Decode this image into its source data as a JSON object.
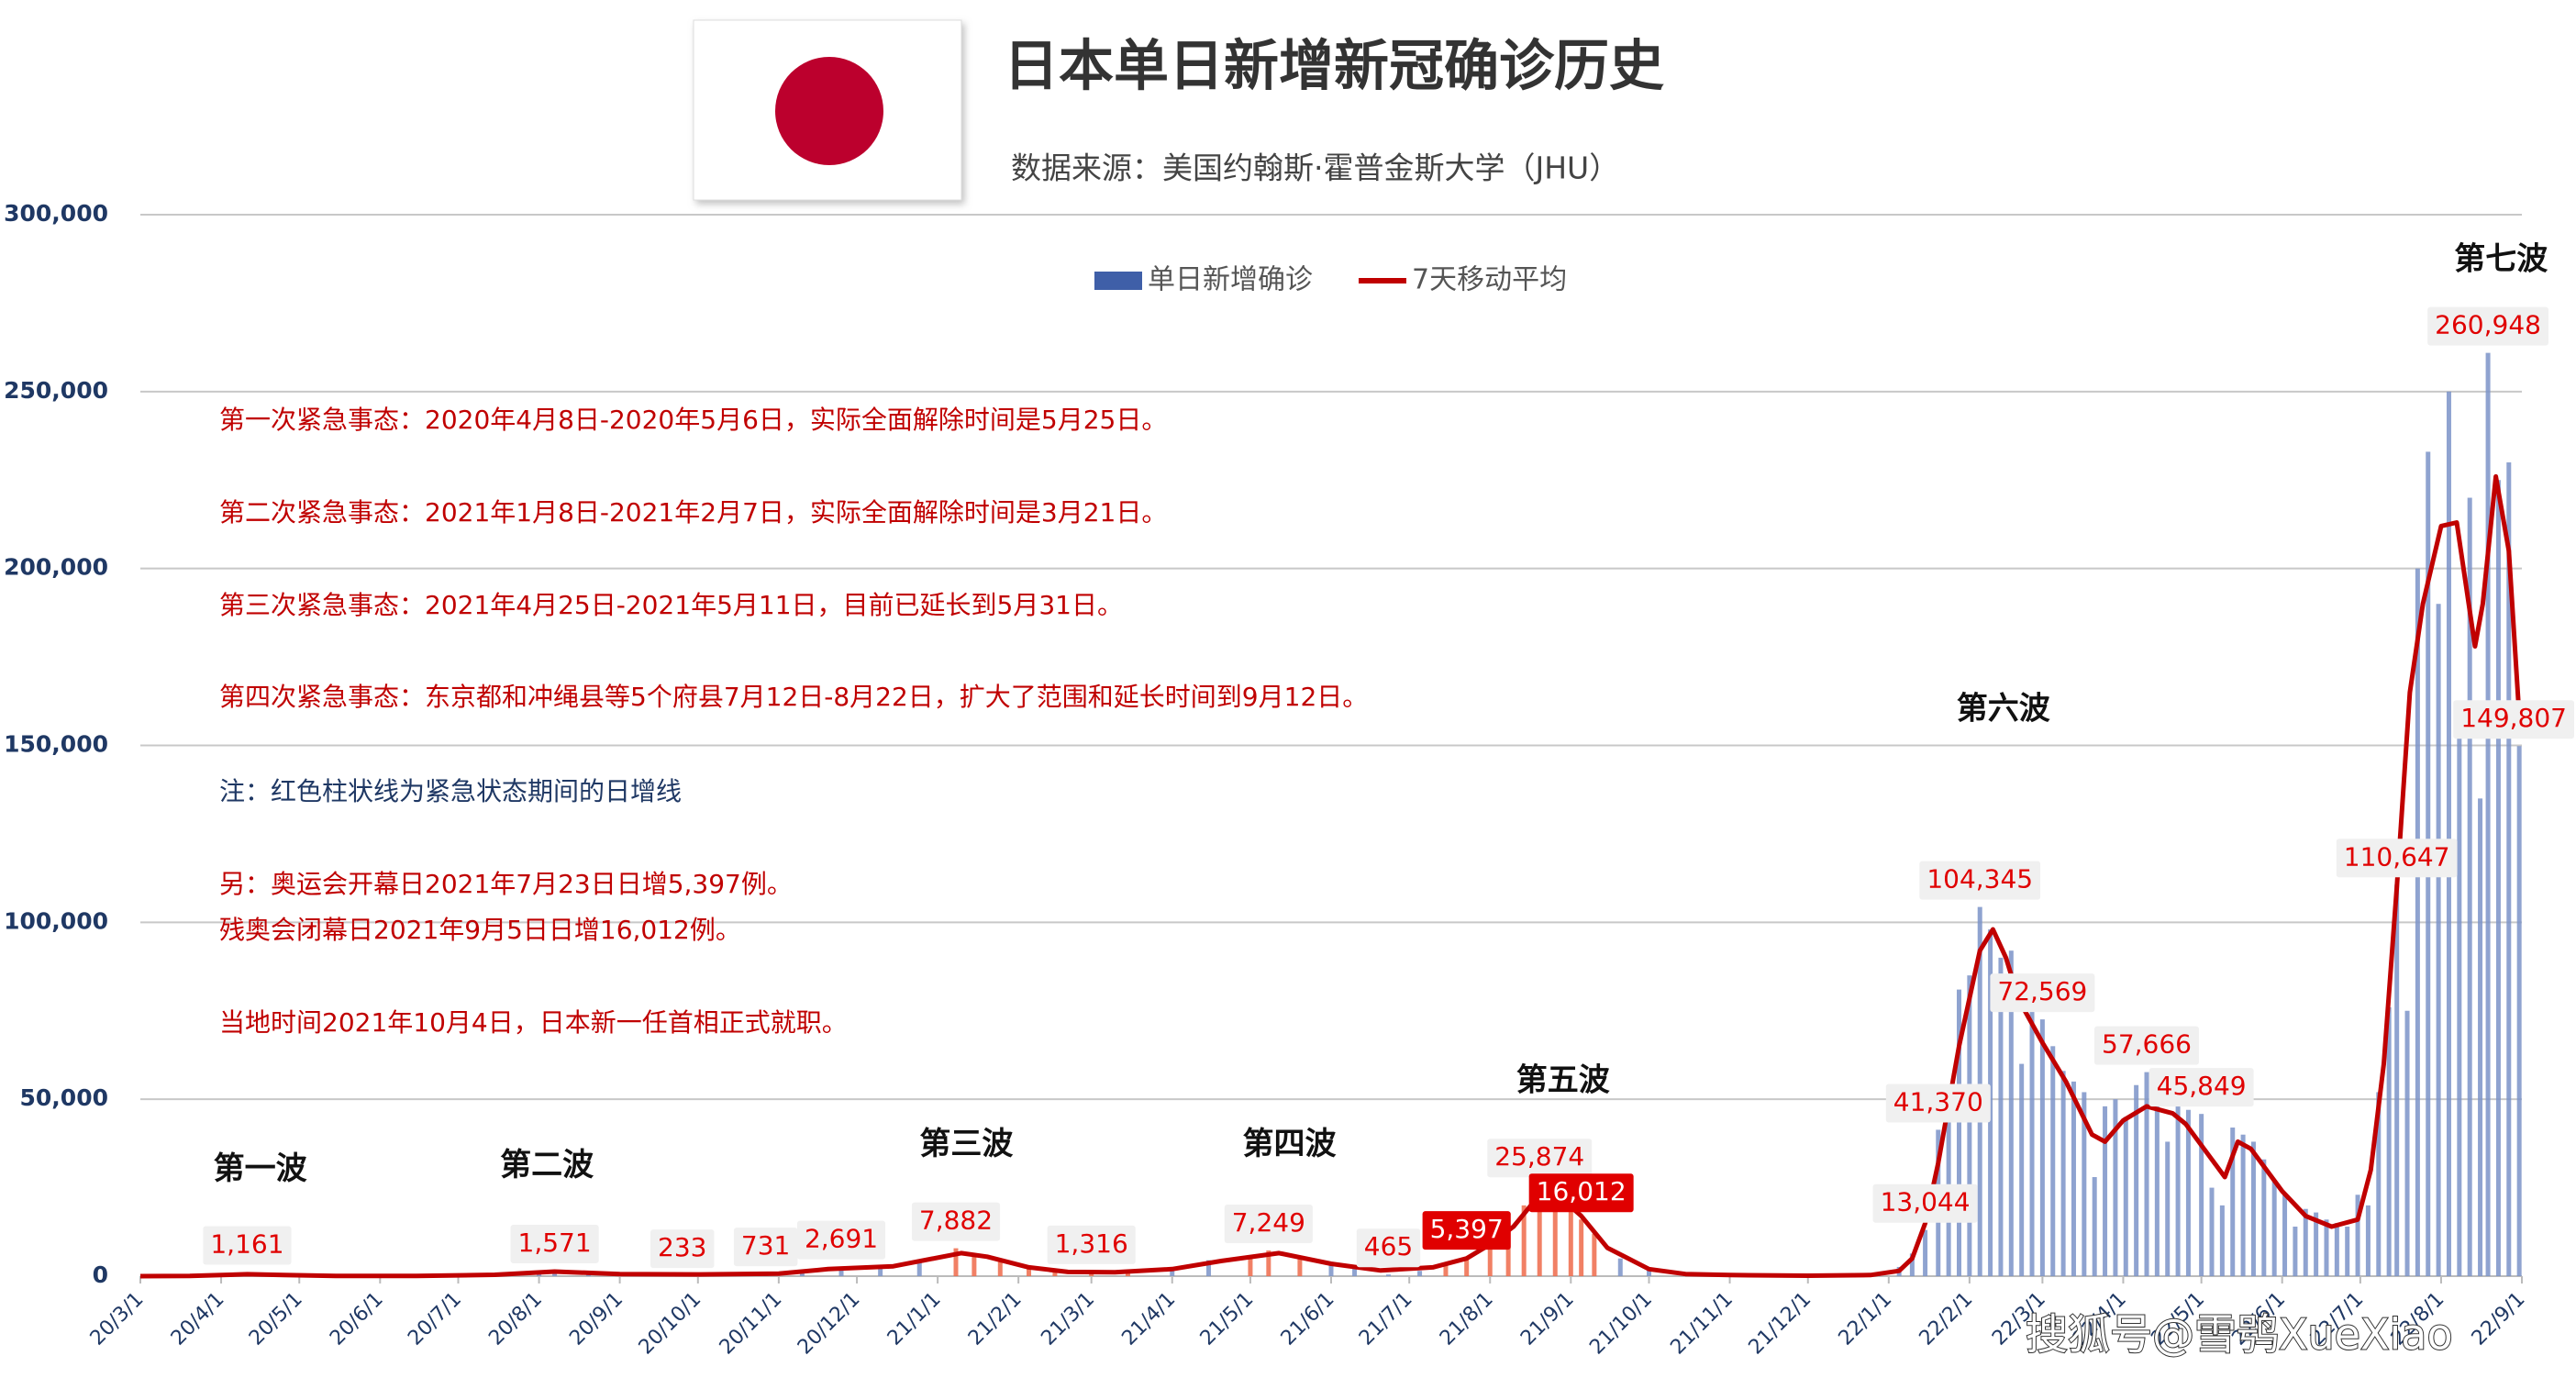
{
  "chart_data": {
    "type": "bar",
    "title": "日本单日新增新冠确诊历史",
    "subtitle": "数据来源：美国约翰斯·霍普金斯大学（JHU）",
    "watermark": "搜狐号@雪鸮XueXiao",
    "legend": "top",
    "grid": true,
    "ylim": [
      0,
      300000
    ],
    "yticks": [
      0,
      {
        "value": 50000,
        "label": "50,000"
      },
      {
        "value": 100000,
        "label": "100,000"
      },
      {
        "value": 150000,
        "label": "150,000"
      },
      {
        "value": 200000,
        "label": "200,000"
      },
      {
        "value": 250000,
        "label": "250,000"
      },
      {
        "value": 300000,
        "label": "300,000"
      }
    ],
    "xlim": [
      "20/3/1",
      "22/9/1"
    ],
    "xticks": [
      "20/3/1",
      "20/4/1",
      "20/5/1",
      "20/6/1",
      "20/7/1",
      "20/8/1",
      "20/9/1",
      "20/10/1",
      "20/11/1",
      "20/12/1",
      "21/1/1",
      "21/2/1",
      "21/3/1",
      "21/4/1",
      "21/5/1",
      "21/6/1",
      "21/7/1",
      "21/8/1",
      "21/9/1",
      "21/10/1",
      "21/11/1",
      "21/12/1",
      "22/1/1",
      "22/2/1",
      "22/3/1",
      "22/4/1",
      "22/5/1",
      "22/6/1",
      "22/7/1",
      "22/8/1",
      "22/9/1"
    ],
    "notes": [
      {
        "text": "第一次紧急事态：2020年4月8日-2020年5月6日，实际全面解除时间是5月25日。",
        "color": "#c00000"
      },
      {
        "text": "第二次紧急事态：2021年1月8日-2021年2月7日，实际全面解除时间是3月21日。",
        "color": "#c00000"
      },
      {
        "text": "第三次紧急事态：2021年4月25日-2021年5月11日，目前已延长到5月31日。",
        "color": "#c00000"
      },
      {
        "text": "第四次紧急事态：东京都和冲绳县等5个府县7月12日-8月22日，扩大了范围和延长时间到9月12日。",
        "color": "#c00000"
      },
      {
        "text": "注：红色柱状线为紧急状态期间的日增线",
        "color": "#1f3864"
      },
      {
        "text": "另：奥运会开幕日2021年7月23日日增5,397例。",
        "color": "#c00000"
      },
      {
        "text": "残奥会闭幕日2021年9月5日日增16,012例。",
        "color": "#c00000"
      },
      {
        "text": "当地时间2021年10月4日，日本新一任首相正式就职。",
        "color": "#c00000"
      }
    ],
    "series": [
      {
        "name": "单日新增确诊",
        "type": "bar",
        "color": "#3f5fa8",
        "x": [
          "20/3/15",
          "20/4/1",
          "20/4/11",
          "20/4/20",
          "20/5/1",
          "20/5/15",
          "20/6/1",
          "20/6/15",
          "20/7/1",
          "20/7/15",
          "20/8/1",
          "20/8/7",
          "20/8/20",
          "20/9/1",
          "20/9/15",
          "20/9/25",
          "20/10/10",
          "20/10/27",
          "20/11/10",
          "20/11/25",
          "20/12/10",
          "20/12/25",
          "21/1/8",
          "21/1/15",
          "21/1/25",
          "21/2/5",
          "21/2/15",
          "21/3/1",
          "21/3/15",
          "21/4/1",
          "21/4/15",
          "21/5/1",
          "21/5/8",
          "21/5/20",
          "21/6/1",
          "21/6/10",
          "21/6/23",
          "21/7/5",
          "21/7/15",
          "21/7/23",
          "21/8/1",
          "21/8/8",
          "21/8/14",
          "21/8/20",
          "21/8/26",
          "21/9/1",
          "21/9/5",
          "21/9/10",
          "21/9/20",
          "21/10/1",
          "21/10/15",
          "21/11/1",
          "21/11/15",
          "21/12/1",
          "21/12/15",
          "21/12/28",
          "22/1/5",
          "22/1/10",
          "22/1/15",
          "22/1/20",
          "22/1/24",
          "22/1/28",
          "22/2/1",
          "22/2/5",
          "22/2/9",
          "22/2/13",
          "22/2/17",
          "22/2/21",
          "22/2/25",
          "22/3/1",
          "22/3/5",
          "22/3/9",
          "22/3/13",
          "22/3/17",
          "22/3/21",
          "22/3/25",
          "22/3/29",
          "22/4/2",
          "22/4/6",
          "22/4/10",
          "22/4/14",
          "22/4/18",
          "22/4/22",
          "22/4/26",
          "22/5/1",
          "22/5/5",
          "22/5/9",
          "22/5/13",
          "22/5/17",
          "22/5/21",
          "22/5/25",
          "22/5/29",
          "22/6/2",
          "22/6/6",
          "22/6/10",
          "22/6/14",
          "22/6/18",
          "22/6/22",
          "22/6/26",
          "22/6/30",
          "22/7/4",
          "22/7/8",
          "22/7/12",
          "22/7/15",
          "22/7/19",
          "22/7/23",
          "22/7/27",
          "22/7/31",
          "22/8/4",
          "22/8/8",
          "22/8/12",
          "22/8/16",
          "22/8/19",
          "22/8/23",
          "22/8/27",
          "22/8/31"
        ],
        "values": [
          40,
          250,
          1161,
          400,
          180,
          50,
          40,
          70,
          130,
          450,
          1500,
          1571,
          1000,
          600,
          500,
          233,
          600,
          731,
          1300,
          2691,
          2800,
          3800,
          7882,
          6500,
          4000,
          2600,
          1300,
          1316,
          1100,
          2000,
          4500,
          5000,
          7249,
          5500,
          3000,
          2200,
          465,
          1500,
          3400,
          5397,
          10000,
          14000,
          20000,
          25874,
          24500,
          20000,
          16012,
          12000,
          5000,
          1600,
          600,
          300,
          200,
          120,
          180,
          400,
          2600,
          6400,
          13044,
          41370,
          45000,
          81000,
          85000,
          104345,
          98000,
          90000,
          92000,
          60000,
          75000,
          72569,
          65000,
          58000,
          55000,
          52000,
          28000,
          48000,
          50000,
          45000,
          54000,
          57666,
          56000,
          38000,
          52000,
          47000,
          45849,
          25000,
          20000,
          42000,
          40000,
          38000,
          33000,
          27000,
          23000,
          14000,
          19000,
          18000,
          16000,
          15000,
          14000,
          23000,
          20000,
          52000,
          76000,
          110647,
          75000,
          200000,
          233000,
          190000,
          250000,
          160000,
          220000,
          135000,
          260948,
          225000,
          230000,
          149807
        ],
        "colors": [
          "#7b93c8",
          "#7b93c8",
          "#ee6a4a",
          "#ee6a4a",
          "#ee6a4a",
          "#ee6a4a",
          "#7b93c8",
          "#7b93c8",
          "#7b93c8",
          "#7b93c8",
          "#7b93c8",
          "#7b93c8",
          "#7b93c8",
          "#7b93c8",
          "#7b93c8",
          "#7b93c8",
          "#7b93c8",
          "#7b93c8",
          "#7b93c8",
          "#7b93c8",
          "#7b93c8",
          "#7b93c8",
          "#ee6a4a",
          "#ee6a4a",
          "#ee6a4a",
          "#ee6a4a",
          "#ee6a4a",
          "#ee6a4a",
          "#ee6a4a",
          "#7b93c8",
          "#7b93c8",
          "#ee6a4a",
          "#ee6a4a",
          "#ee6a4a",
          "#7b93c8",
          "#7b93c8",
          "#7b93c8",
          "#7b93c8",
          "#ee6a4a",
          "#ee6a4a",
          "#ee6a4a",
          "#ee6a4a",
          "#ee6a4a",
          "#ee6a4a",
          "#ee6a4a",
          "#ee6a4a",
          "#ee6a4a",
          "#ee6a4a",
          "#7b93c8",
          "#7b93c8",
          "#7b93c8",
          "#7b93c8",
          "#7b93c8",
          "#7b93c8",
          "#7b93c8",
          "#7b93c8",
          "#7b93c8",
          "#7b93c8",
          "#7b93c8",
          "#7b93c8",
          "#7b93c8",
          "#7b93c8",
          "#7b93c8",
          "#7b93c8",
          "#7b93c8",
          "#7b93c8",
          "#7b93c8",
          "#7b93c8",
          "#7b93c8",
          "#7b93c8",
          "#7b93c8",
          "#7b93c8",
          "#7b93c8",
          "#7b93c8",
          "#7b93c8",
          "#7b93c8",
          "#7b93c8",
          "#7b93c8",
          "#7b93c8",
          "#7b93c8",
          "#7b93c8",
          "#7b93c8",
          "#7b93c8",
          "#7b93c8",
          "#7b93c8",
          "#7b93c8",
          "#7b93c8",
          "#7b93c8",
          "#7b93c8",
          "#7b93c8",
          "#7b93c8",
          "#7b93c8",
          "#7b93c8",
          "#7b93c8",
          "#7b93c8",
          "#7b93c8",
          "#7b93c8",
          "#7b93c8",
          "#7b93c8",
          "#7b93c8",
          "#7b93c8",
          "#7b93c8",
          "#7b93c8",
          "#7b93c8",
          "#7b93c8",
          "#7b93c8",
          "#7b93c8",
          "#7b93c8",
          "#7b93c8",
          "#7b93c8",
          "#7b93c8",
          "#7b93c8",
          "#7b93c8",
          "#7b93c8",
          "#7b93c8",
          "#7b93c8"
        ]
      },
      {
        "name": "7天移动平均",
        "type": "line",
        "color": "#c00000",
        "x": [
          "20/3/1",
          "20/3/20",
          "20/4/11",
          "20/4/25",
          "20/5/15",
          "20/6/15",
          "20/7/15",
          "20/8/7",
          "20/9/1",
          "20/10/1",
          "20/11/1",
          "20/11/20",
          "20/12/15",
          "21/1/10",
          "21/1/20",
          "21/2/5",
          "21/2/20",
          "21/3/10",
          "21/4/1",
          "21/4/20",
          "21/5/12",
          "21/6/1",
          "21/6/20",
          "21/7/10",
          "21/7/23",
          "21/8/1",
          "21/8/10",
          "21/8/20",
          "21/8/26",
          "21/9/5",
          "21/9/15",
          "21/10/1",
          "21/10/15",
          "21/11/1",
          "21/12/1",
          "21/12/25",
          "22/1/5",
          "22/1/10",
          "22/1/15",
          "22/1/20",
          "22/1/28",
          "22/2/5",
          "22/2/10",
          "22/2/15",
          "22/2/20",
          "22/3/1",
          "22/3/10",
          "22/3/20",
          "22/3/25",
          "22/4/1",
          "22/4/10",
          "22/4/20",
          "22/4/25",
          "22/5/1",
          "22/5/10",
          "22/5/15",
          "22/5/20",
          "22/6/1",
          "22/6/10",
          "22/6/20",
          "22/6/30",
          "22/7/5",
          "22/7/10",
          "22/7/15",
          "22/7/20",
          "22/7/25",
          "22/8/1",
          "22/8/7",
          "22/8/14",
          "22/8/17",
          "22/8/22",
          "22/8/27",
          "22/8/31"
        ],
        "values": [
          10,
          40,
          550,
          350,
          50,
          50,
          400,
          1300,
          600,
          500,
          700,
          2000,
          2800,
          6500,
          5500,
          2500,
          1200,
          1100,
          2000,
          4300,
          6500,
          3500,
          1600,
          2500,
          5000,
          9000,
          14000,
          23000,
          23500,
          17000,
          8000,
          2000,
          600,
          300,
          120,
          300,
          1500,
          5000,
          15000,
          32000,
          65000,
          92000,
          98000,
          90000,
          78000,
          66000,
          55000,
          40000,
          38000,
          44000,
          48000,
          46000,
          43000,
          37000,
          28000,
          38000,
          36000,
          24000,
          17000,
          14000,
          16000,
          30000,
          60000,
          110000,
          165000,
          190000,
          212000,
          213000,
          178000,
          190000,
          226000,
          205000,
          158000
        ]
      }
    ],
    "annotations": [
      {
        "x": "20/4/11",
        "value": 1161,
        "label": "1,161"
      },
      {
        "x": "20/8/7",
        "value": 1571,
        "label": "1,571"
      },
      {
        "x": "20/9/25",
        "value": 233,
        "label": "233"
      },
      {
        "x": "20/10/27",
        "value": 731,
        "label": "731"
      },
      {
        "x": "20/11/25",
        "value": 2691,
        "label": "2,691"
      },
      {
        "x": "21/1/8",
        "value": 7882,
        "label": "7,882"
      },
      {
        "x": "21/3/1",
        "value": 1316,
        "label": "1,316"
      },
      {
        "x": "21/5/8",
        "value": 7249,
        "label": "7,249"
      },
      {
        "x": "21/6/23",
        "value": 465,
        "label": "465"
      },
      {
        "x": "21/7/23",
        "value": 5397,
        "label": "5,397",
        "highlight": true
      },
      {
        "x": "21/8/20",
        "value": 25874,
        "label": "25,874"
      },
      {
        "x": "21/9/5",
        "value": 16012,
        "label": "16,012",
        "highlight": true
      },
      {
        "x": "22/1/15",
        "value": 13044,
        "label": "13,044"
      },
      {
        "x": "22/1/20",
        "value": 41370,
        "label": "41,370"
      },
      {
        "x": "22/2/5",
        "value": 104345,
        "label": "104,345"
      },
      {
        "x": "22/3/1",
        "value": 72569,
        "label": "72,569"
      },
      {
        "x": "22/4/10",
        "value": 57666,
        "label": "57,666"
      },
      {
        "x": "22/5/1",
        "value": 45849,
        "label": "45,849"
      },
      {
        "x": "22/7/15",
        "value": 110647,
        "label": "110,647"
      },
      {
        "x": "22/8/19",
        "value": 260948,
        "label": "260,948"
      },
      {
        "x": "22/8/31",
        "value": 149807,
        "label": "149,807"
      }
    ],
    "waves": [
      {
        "label": "第一波",
        "x": "20/4/16",
        "y": 30000
      },
      {
        "label": "第二波",
        "x": "20/8/4",
        "y": 31000
      },
      {
        "label": "第三波",
        "x": "21/1/12",
        "y": 37000
      },
      {
        "label": "第四波",
        "x": "21/5/16",
        "y": 37000
      },
      {
        "label": "第五波",
        "x": "21/8/29",
        "y": 55000
      },
      {
        "label": "第六波",
        "x": "22/2/14",
        "y": 160000
      },
      {
        "label": "第七波",
        "x": "22/8/24",
        "y": 287000
      }
    ]
  }
}
